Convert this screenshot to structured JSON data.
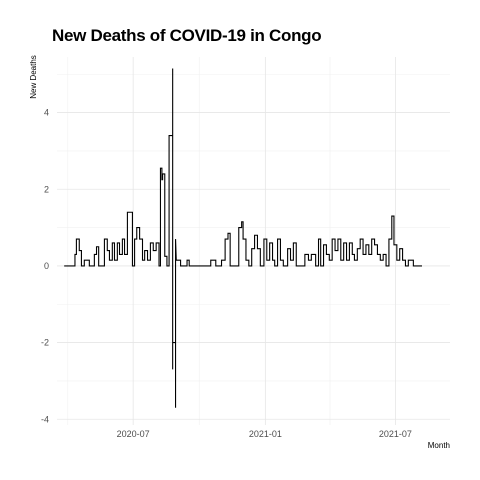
{
  "chart_data": {
    "type": "line",
    "title": "New Deaths of COVID-19 in Congo",
    "xlabel": "Month",
    "ylabel": "New Deaths",
    "x_ticks": [
      "2020-07",
      "2021-01",
      "2021-07"
    ],
    "y_ticks": [
      -4,
      -2,
      0,
      2,
      4
    ],
    "xlim": [
      "2020-03-17",
      "2021-09-15"
    ],
    "ylim": [
      -4.15,
      5.45
    ],
    "grid": true,
    "line_color": "#000000",
    "series": [
      {
        "points": [
          [
            "2020-03-27",
            0
          ],
          [
            "2020-04-11",
            0
          ],
          [
            "2020-04-11",
            0.3
          ],
          [
            "2020-04-13",
            0.3
          ],
          [
            "2020-04-13",
            0.7
          ],
          [
            "2020-04-17",
            0.7
          ],
          [
            "2020-04-17",
            0.4
          ],
          [
            "2020-04-20",
            0.4
          ],
          [
            "2020-04-20",
            0
          ],
          [
            "2020-04-24",
            0
          ],
          [
            "2020-04-24",
            0.15
          ],
          [
            "2020-05-01",
            0.15
          ],
          [
            "2020-05-01",
            0
          ],
          [
            "2020-05-08",
            0
          ],
          [
            "2020-05-08",
            0.3
          ],
          [
            "2020-05-11",
            0.3
          ],
          [
            "2020-05-11",
            0.5
          ],
          [
            "2020-05-14",
            0.5
          ],
          [
            "2020-05-14",
            0
          ],
          [
            "2020-05-22",
            0
          ],
          [
            "2020-05-22",
            0.7
          ],
          [
            "2020-05-26",
            0.7
          ],
          [
            "2020-05-26",
            0.4
          ],
          [
            "2020-05-29",
            0.4
          ],
          [
            "2020-05-29",
            0.15
          ],
          [
            "2020-06-02",
            0.15
          ],
          [
            "2020-06-02",
            0.6
          ],
          [
            "2020-06-05",
            0.6
          ],
          [
            "2020-06-05",
            0.15
          ],
          [
            "2020-06-09",
            0.15
          ],
          [
            "2020-06-09",
            0.6
          ],
          [
            "2020-06-12",
            0.6
          ],
          [
            "2020-06-12",
            0.3
          ],
          [
            "2020-06-16",
            0.3
          ],
          [
            "2020-06-16",
            0.7
          ],
          [
            "2020-06-19",
            0.7
          ],
          [
            "2020-06-19",
            0.3
          ],
          [
            "2020-06-23",
            0.3
          ],
          [
            "2020-06-23",
            1.4
          ],
          [
            "2020-06-30",
            1.4
          ],
          [
            "2020-06-30",
            0
          ],
          [
            "2020-07-03",
            0
          ],
          [
            "2020-07-03",
            0.7
          ],
          [
            "2020-07-06",
            0.7
          ],
          [
            "2020-07-06",
            1.0
          ],
          [
            "2020-07-10",
            1.0
          ],
          [
            "2020-07-10",
            0.7
          ],
          [
            "2020-07-14",
            0.7
          ],
          [
            "2020-07-14",
            0.15
          ],
          [
            "2020-07-17",
            0.15
          ],
          [
            "2020-07-17",
            0.4
          ],
          [
            "2020-07-21",
            0.4
          ],
          [
            "2020-07-21",
            0.15
          ],
          [
            "2020-07-25",
            0.15
          ],
          [
            "2020-07-25",
            0.6
          ],
          [
            "2020-07-29",
            0.6
          ],
          [
            "2020-07-29",
            0.4
          ],
          [
            "2020-08-02",
            0.4
          ],
          [
            "2020-08-02",
            0.6
          ],
          [
            "2020-08-06",
            0.6
          ],
          [
            "2020-08-06",
            0
          ],
          [
            "2020-08-08",
            0
          ],
          [
            "2020-08-08",
            2.55
          ],
          [
            "2020-08-10",
            2.55
          ],
          [
            "2020-08-10",
            2.25
          ],
          [
            "2020-08-11",
            2.25
          ],
          [
            "2020-08-11",
            2.4
          ],
          [
            "2020-08-14",
            2.4
          ],
          [
            "2020-08-14",
            0.25
          ],
          [
            "2020-08-17",
            0.25
          ],
          [
            "2020-08-17",
            0
          ],
          [
            "2020-08-20",
            0
          ],
          [
            "2020-08-20",
            3.4
          ],
          [
            "2020-08-25",
            3.4
          ],
          [
            "2020-08-25",
            5.15
          ],
          [
            "2020-08-25",
            -2.7
          ],
          [
            "2020-08-25",
            -2.0
          ],
          [
            "2020-08-29",
            -2.0
          ],
          [
            "2020-08-29",
            -3.7
          ],
          [
            "2020-08-29",
            0.7
          ],
          [
            "2020-08-30",
            0.15
          ],
          [
            "2020-09-05",
            0.15
          ],
          [
            "2020-09-05",
            0
          ],
          [
            "2020-09-14",
            0
          ],
          [
            "2020-09-14",
            0.15
          ],
          [
            "2020-09-17",
            0.15
          ],
          [
            "2020-09-17",
            0
          ],
          [
            "2020-10-17",
            0
          ],
          [
            "2020-10-17",
            0.15
          ],
          [
            "2020-10-24",
            0.15
          ],
          [
            "2020-10-24",
            0
          ],
          [
            "2020-11-01",
            0
          ],
          [
            "2020-11-01",
            0.15
          ],
          [
            "2020-11-06",
            0.15
          ],
          [
            "2020-11-06",
            0.7
          ],
          [
            "2020-11-10",
            0.7
          ],
          [
            "2020-11-10",
            0.85
          ],
          [
            "2020-11-13",
            0.85
          ],
          [
            "2020-11-13",
            0
          ],
          [
            "2020-11-25",
            0
          ],
          [
            "2020-11-25",
            1.0
          ],
          [
            "2020-11-29",
            1.0
          ],
          [
            "2020-11-29",
            1.15
          ],
          [
            "2020-12-01",
            1.15
          ],
          [
            "2020-12-01",
            0.7
          ],
          [
            "2020-12-05",
            0.7
          ],
          [
            "2020-12-05",
            0.15
          ],
          [
            "2020-12-09",
            0.15
          ],
          [
            "2020-12-09",
            0
          ],
          [
            "2020-12-13",
            0
          ],
          [
            "2020-12-13",
            0.45
          ],
          [
            "2020-12-17",
            0.45
          ],
          [
            "2020-12-17",
            0.8
          ],
          [
            "2020-12-21",
            0.8
          ],
          [
            "2020-12-21",
            0.45
          ],
          [
            "2020-12-25",
            0.45
          ],
          [
            "2020-12-25",
            0
          ],
          [
            "2020-12-30",
            0
          ],
          [
            "2020-12-30",
            0.7
          ],
          [
            "2021-01-03",
            0.7
          ],
          [
            "2021-01-03",
            0.15
          ],
          [
            "2021-01-07",
            0.15
          ],
          [
            "2021-01-07",
            0.6
          ],
          [
            "2021-01-11",
            0.6
          ],
          [
            "2021-01-11",
            0.15
          ],
          [
            "2021-01-14",
            0.15
          ],
          [
            "2021-01-14",
            0
          ],
          [
            "2021-01-18",
            0
          ],
          [
            "2021-01-18",
            0.7
          ],
          [
            "2021-01-22",
            0.7
          ],
          [
            "2021-01-22",
            0.15
          ],
          [
            "2021-01-26",
            0.15
          ],
          [
            "2021-01-26",
            0
          ],
          [
            "2021-02-01",
            0
          ],
          [
            "2021-02-01",
            0.45
          ],
          [
            "2021-02-05",
            0.45
          ],
          [
            "2021-02-05",
            0.15
          ],
          [
            "2021-02-09",
            0.15
          ],
          [
            "2021-02-09",
            0.6
          ],
          [
            "2021-02-13",
            0.6
          ],
          [
            "2021-02-13",
            0
          ],
          [
            "2021-02-25",
            0
          ],
          [
            "2021-02-25",
            0.3
          ],
          [
            "2021-03-02",
            0.3
          ],
          [
            "2021-03-02",
            0.15
          ],
          [
            "2021-03-06",
            0.15
          ],
          [
            "2021-03-06",
            0.3
          ],
          [
            "2021-03-12",
            0.3
          ],
          [
            "2021-03-12",
            0
          ],
          [
            "2021-03-16",
            0
          ],
          [
            "2021-03-16",
            0.7
          ],
          [
            "2021-03-19",
            0.7
          ],
          [
            "2021-03-19",
            0
          ],
          [
            "2021-03-23",
            0
          ],
          [
            "2021-03-23",
            0.55
          ],
          [
            "2021-03-27",
            0.55
          ],
          [
            "2021-03-27",
            0.3
          ],
          [
            "2021-03-31",
            0.3
          ],
          [
            "2021-03-31",
            0.15
          ],
          [
            "2021-04-04",
            0.15
          ],
          [
            "2021-04-04",
            0.7
          ],
          [
            "2021-04-08",
            0.7
          ],
          [
            "2021-04-08",
            0.4
          ],
          [
            "2021-04-12",
            0.4
          ],
          [
            "2021-04-12",
            0.7
          ],
          [
            "2021-04-16",
            0.7
          ],
          [
            "2021-04-16",
            0.15
          ],
          [
            "2021-04-20",
            0.15
          ],
          [
            "2021-04-20",
            0.6
          ],
          [
            "2021-04-24",
            0.6
          ],
          [
            "2021-04-24",
            0.15
          ],
          [
            "2021-04-28",
            0.15
          ],
          [
            "2021-04-28",
            0.6
          ],
          [
            "2021-05-02",
            0.6
          ],
          [
            "2021-05-02",
            0.3
          ],
          [
            "2021-05-05",
            0.3
          ],
          [
            "2021-05-05",
            0.15
          ],
          [
            "2021-05-09",
            0.15
          ],
          [
            "2021-05-09",
            0.45
          ],
          [
            "2021-05-13",
            0.45
          ],
          [
            "2021-05-13",
            0.7
          ],
          [
            "2021-05-17",
            0.7
          ],
          [
            "2021-05-17",
            0.3
          ],
          [
            "2021-05-21",
            0.3
          ],
          [
            "2021-05-21",
            0.55
          ],
          [
            "2021-05-25",
            0.55
          ],
          [
            "2021-05-25",
            0.3
          ],
          [
            "2021-05-29",
            0.3
          ],
          [
            "2021-05-29",
            0.7
          ],
          [
            "2021-06-02",
            0.7
          ],
          [
            "2021-06-02",
            0.55
          ],
          [
            "2021-06-06",
            0.55
          ],
          [
            "2021-06-06",
            0.3
          ],
          [
            "2021-06-10",
            0.3
          ],
          [
            "2021-06-10",
            0.15
          ],
          [
            "2021-06-14",
            0.15
          ],
          [
            "2021-06-14",
            0.3
          ],
          [
            "2021-06-18",
            0.3
          ],
          [
            "2021-06-18",
            0
          ],
          [
            "2021-06-22",
            0
          ],
          [
            "2021-06-22",
            0.7
          ],
          [
            "2021-06-26",
            0.7
          ],
          [
            "2021-06-26",
            1.3
          ],
          [
            "2021-06-29",
            1.3
          ],
          [
            "2021-06-29",
            0.55
          ],
          [
            "2021-07-03",
            0.55
          ],
          [
            "2021-07-03",
            0.15
          ],
          [
            "2021-07-07",
            0.15
          ],
          [
            "2021-07-07",
            0.45
          ],
          [
            "2021-07-11",
            0.45
          ],
          [
            "2021-07-11",
            0.15
          ],
          [
            "2021-07-15",
            0.15
          ],
          [
            "2021-07-15",
            0
          ],
          [
            "2021-07-19",
            0
          ],
          [
            "2021-07-19",
            0.15
          ],
          [
            "2021-07-26",
            0.15
          ],
          [
            "2021-07-26",
            0
          ],
          [
            "2021-08-07",
            0
          ]
        ]
      }
    ]
  }
}
